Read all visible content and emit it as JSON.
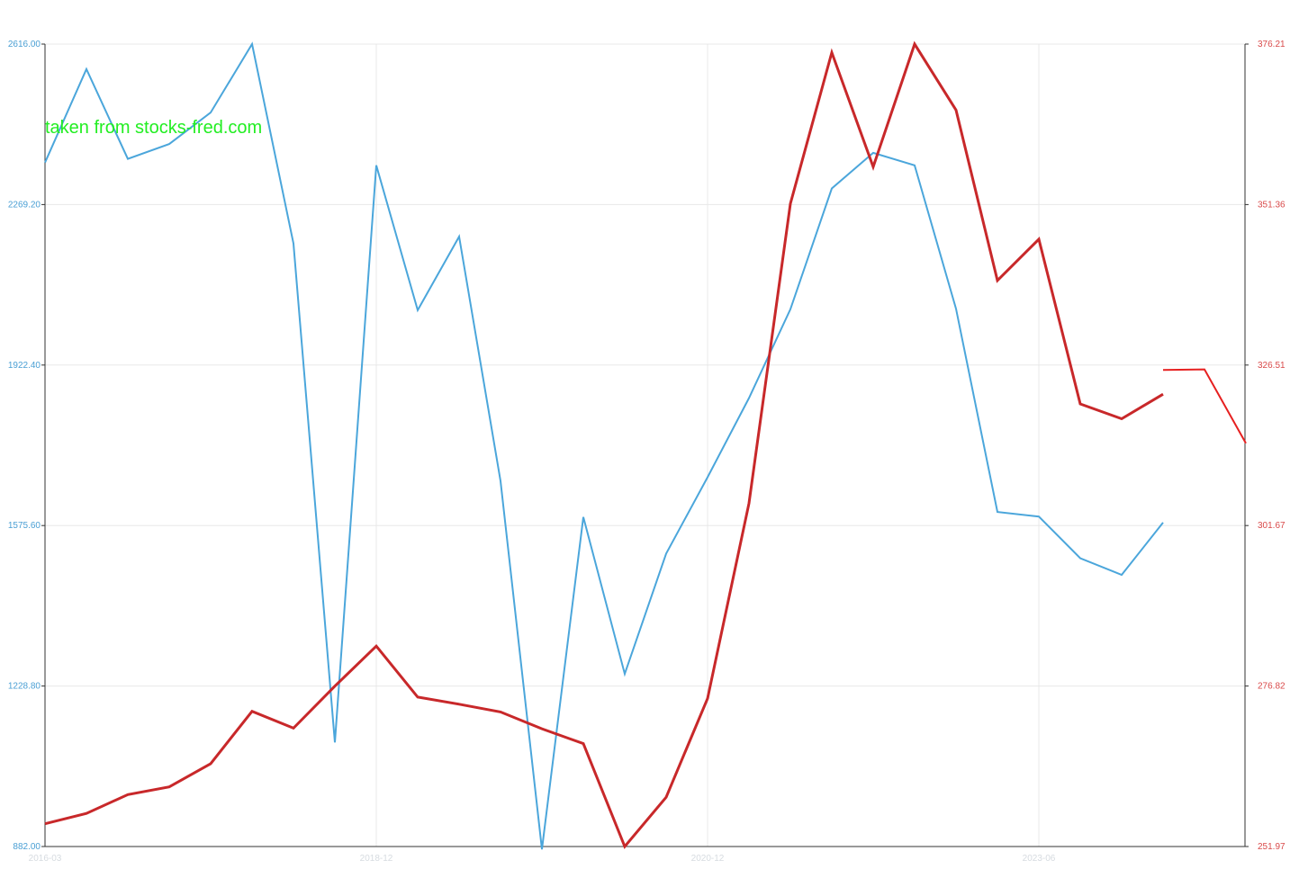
{
  "watermark": "taken from stocks-fred.com",
  "colors": {
    "left_series": "#4ba6db",
    "right_series": "#c8282a",
    "right_tail": "#e62020",
    "grid": "#e8e8e8",
    "axis": "#333333"
  },
  "chart_data": {
    "type": "line",
    "title": "",
    "grid": true,
    "x_tick_labels": [
      "2016-03",
      "2018-12",
      "2020-12",
      "2023-06"
    ],
    "x_tick_positions": [
      0,
      8,
      16,
      24
    ],
    "y_left": {
      "ticks": [
        "882.00",
        "1228.80",
        "1575.60",
        "1922.40",
        "2269.20",
        "2616.00"
      ],
      "range": [
        882,
        2616
      ]
    },
    "y_right": {
      "ticks": [
        "251.97",
        "276.82",
        "301.67",
        "326.51",
        "351.36",
        "376.21"
      ],
      "range": [
        251.97,
        376.21
      ]
    },
    "series": [
      {
        "axis": "left",
        "x": [
          0,
          1,
          2,
          3,
          4,
          5,
          6,
          7,
          8,
          9,
          10,
          11,
          12,
          13,
          14,
          15,
          16,
          17,
          18,
          19,
          20,
          21,
          22,
          23,
          24,
          25,
          26,
          27
        ],
        "values": [
          2360,
          2562,
          2368,
          2400,
          2468,
          2616,
          2185,
          1107,
          2354,
          2041,
          2200,
          1672,
          876,
          1594,
          1255,
          1515,
          1680,
          1851,
          2043,
          2304,
          2381,
          2354,
          2044,
          1605,
          1595,
          1505,
          1469,
          1582
        ]
      },
      {
        "axis": "right",
        "x": [
          0,
          1,
          2,
          3,
          4,
          5,
          6,
          7,
          8,
          9,
          10,
          11,
          12,
          13,
          14,
          15,
          16,
          17,
          18,
          19,
          20,
          21,
          22,
          23,
          24,
          25,
          26,
          27
        ],
        "values": [
          255.5,
          257.1,
          260.0,
          261.2,
          264.8,
          272.9,
          270.3,
          276.8,
          283.0,
          275.1,
          274.0,
          272.8,
          270.2,
          267.9,
          251.97,
          259.6,
          274.9,
          305.1,
          351.5,
          374.9,
          357.2,
          376.21,
          366.0,
          339.6,
          346.0,
          320.5,
          318.2,
          322.0
        ]
      },
      {
        "axis": "right",
        "x": [
          27,
          28,
          29
        ],
        "values": [
          325.75,
          325.85,
          314.4
        ]
      }
    ]
  }
}
